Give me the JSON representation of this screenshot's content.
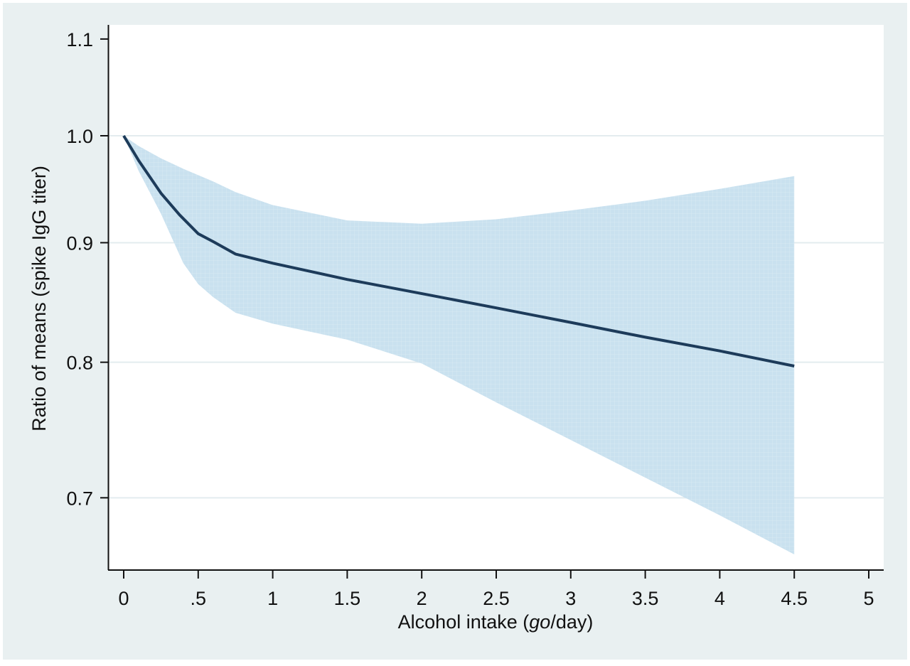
{
  "chart_data": {
    "type": "line",
    "title": "",
    "xlabel_parts": [
      "Alcohol intake (",
      "go",
      "/day)"
    ],
    "ylabel": "Ratio of means (spike IgG titer)",
    "xlim": [
      0,
      5
    ],
    "ylim": [
      0.655,
      1.11
    ],
    "y_scale": "log",
    "grid": "horizontal",
    "x_ticks": [
      0,
      0.5,
      1,
      1.5,
      2,
      2.5,
      3,
      3.5,
      4,
      4.5,
      5
    ],
    "x_tick_labels": [
      "0",
      ".5",
      "1",
      "1.5",
      "2",
      "2.5",
      "3",
      "3.5",
      "4",
      "4.5",
      "5"
    ],
    "y_ticks": [
      0.7,
      0.8,
      0.9,
      1.0,
      1.1
    ],
    "y_tick_labels": [
      "0.7",
      "0.8",
      "0.9",
      "1.0",
      "1.1"
    ],
    "colors": {
      "line": "#1d3b5a",
      "band": "#c9e1ef",
      "background": "#e9f0f1",
      "plot": "#ffffff",
      "grid": "#e3ecef"
    },
    "series": [
      {
        "role": "estimate",
        "x": [
          0,
          0.1,
          0.25,
          0.375,
          0.5,
          0.6,
          0.75,
          1.0,
          1.5,
          2.0,
          2.5,
          3.0,
          3.5,
          4.0,
          4.5
        ],
        "y": [
          1.0,
          0.976,
          0.945,
          0.925,
          0.908,
          0.901,
          0.89,
          0.882,
          0.868,
          0.856,
          0.844,
          0.832,
          0.82,
          0.809,
          0.797
        ]
      }
    ],
    "confidence_band": {
      "x": [
        0,
        0.1,
        0.25,
        0.4,
        0.5,
        0.6,
        0.75,
        1.0,
        1.5,
        2.0,
        2.5,
        3.0,
        3.5,
        4.0,
        4.5
      ],
      "upper": [
        1.0,
        0.99,
        0.978,
        0.968,
        0.962,
        0.956,
        0.946,
        0.934,
        0.92,
        0.917,
        0.921,
        0.929,
        0.938,
        0.949,
        0.961
      ],
      "lower": [
        1.0,
        0.966,
        0.926,
        0.882,
        0.864,
        0.853,
        0.84,
        0.831,
        0.818,
        0.799,
        0.769,
        0.741,
        0.714,
        0.688,
        0.662
      ]
    }
  }
}
